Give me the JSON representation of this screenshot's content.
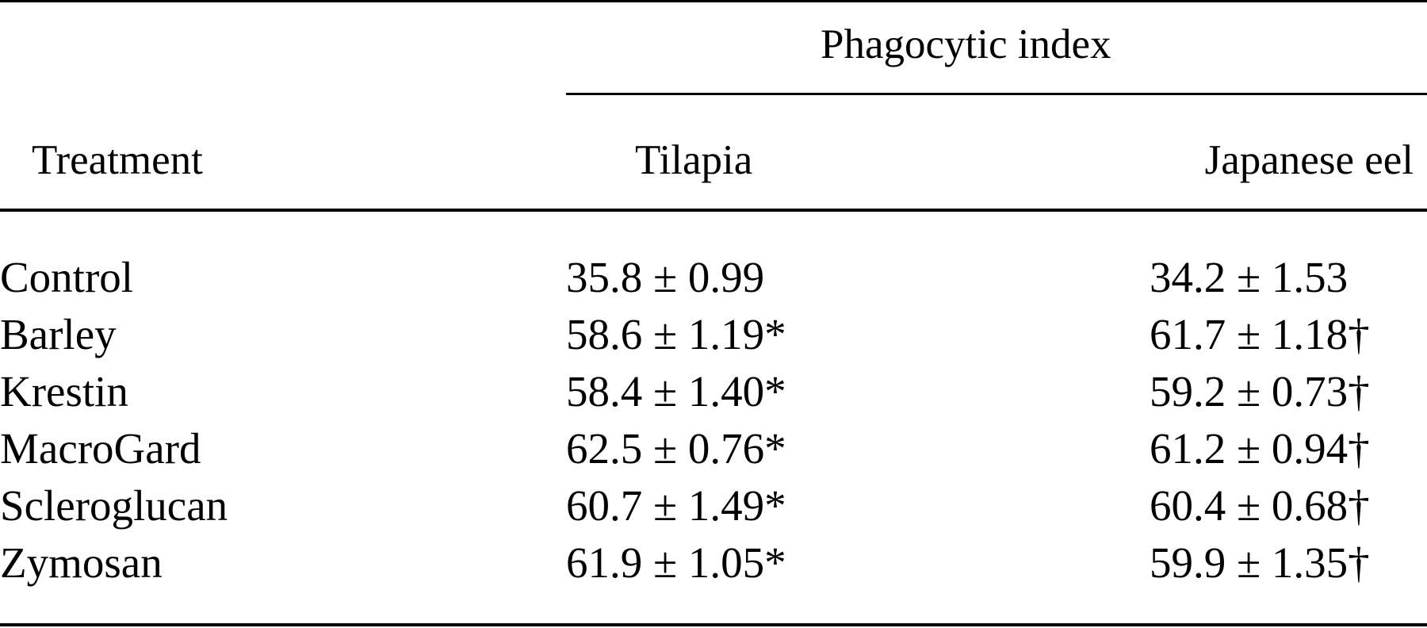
{
  "table": {
    "header": {
      "group_label": "Phagocytic index",
      "treatment_label": "Treatment",
      "col1_label": "Tilapia",
      "col2_label": "Japanese eel"
    },
    "rows": [
      {
        "treatment": "Control",
        "tilapia": "35.8 ± 0.99",
        "eel": "34.2 ± 1.53"
      },
      {
        "treatment": "Barley",
        "tilapia": "58.6 ± 1.19*",
        "eel": "61.7 ± 1.18†"
      },
      {
        "treatment": "Krestin",
        "tilapia": "58.4 ± 1.40*",
        "eel": "59.2 ± 0.73†"
      },
      {
        "treatment": "MacroGard",
        "tilapia": "62.5 ± 0.76*",
        "eel": "61.2 ± 0.94†"
      },
      {
        "treatment": "Scleroglucan",
        "tilapia": "60.7 ± 1.49*",
        "eel": "60.4 ± 0.68†"
      },
      {
        "treatment": "Zymosan",
        "tilapia": "61.9 ± 1.05*",
        "eel": "59.9 ± 1.35†"
      }
    ]
  }
}
